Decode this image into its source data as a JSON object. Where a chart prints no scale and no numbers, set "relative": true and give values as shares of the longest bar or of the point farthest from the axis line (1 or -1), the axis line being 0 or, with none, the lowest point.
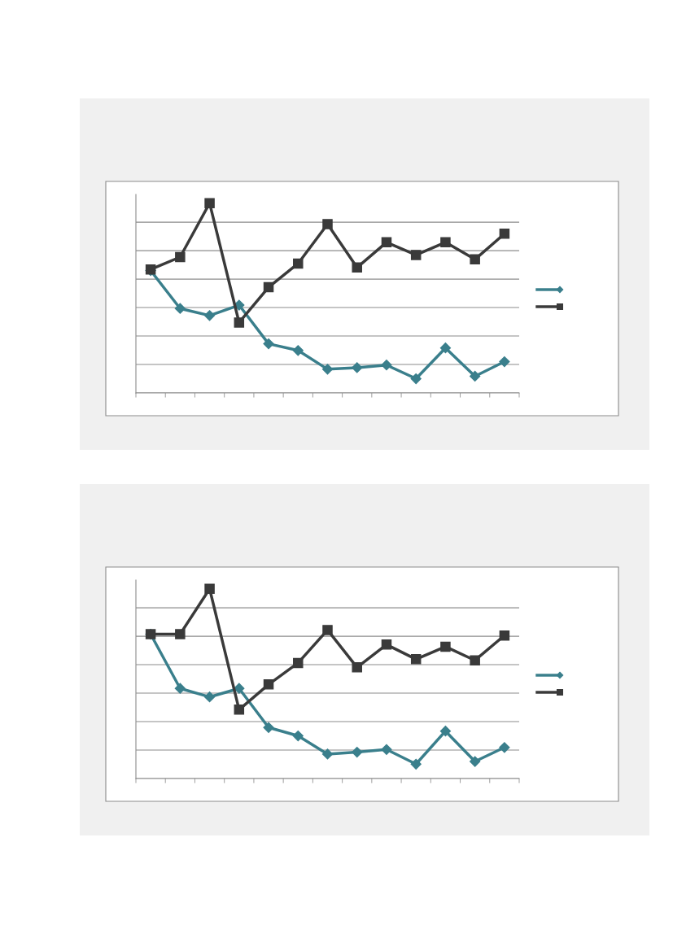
{
  "chart_data": [
    {
      "type": "line",
      "relative": true,
      "categories": [
        null,
        null,
        null,
        null,
        null,
        null,
        null,
        null,
        null,
        null,
        null,
        null,
        null
      ],
      "grid": "y",
      "line_style": "solid",
      "series": [
        {
          "color": "#3a7f8c",
          "marker": "diamond",
          "values": [
            0.645,
            0.445,
            0.408,
            0.463,
            0.259,
            0.224,
            0.125,
            0.133,
            0.147,
            0.075,
            0.237,
            0.088,
            0.165
          ]
        },
        {
          "color": "#3a3a3a",
          "marker": "square",
          "values": [
            0.651,
            0.716,
            1.0,
            0.371,
            0.557,
            0.682,
            0.89,
            0.661,
            0.794,
            0.727,
            0.794,
            0.704,
            0.839
          ]
        }
      ]
    },
    {
      "type": "line",
      "relative": true,
      "categories": [
        null,
        null,
        null,
        null,
        null,
        null,
        null,
        null,
        null,
        null,
        null,
        null,
        null
      ],
      "grid": "y",
      "line_style": "solid",
      "series": [
        {
          "color": "#3a7f8c",
          "marker": "diamond",
          "values": [
            0.761,
            0.475,
            0.43,
            0.475,
            0.269,
            0.225,
            0.129,
            0.139,
            0.153,
            0.076,
            0.25,
            0.09,
            0.164
          ]
        },
        {
          "color": "#3a3a3a",
          "marker": "square",
          "values": [
            0.761,
            0.761,
            1.0,
            0.363,
            0.496,
            0.609,
            0.783,
            0.586,
            0.706,
            0.629,
            0.695,
            0.623,
            0.754
          ]
        }
      ]
    }
  ]
}
